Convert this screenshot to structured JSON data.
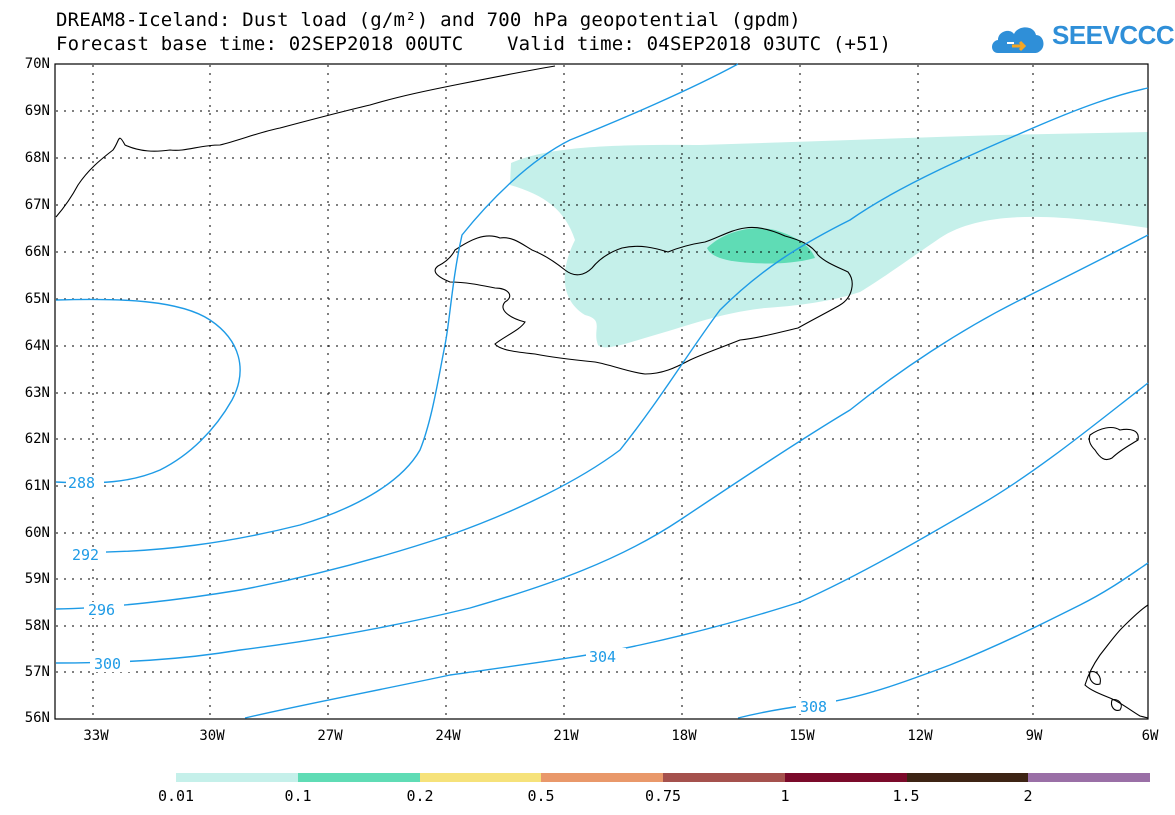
{
  "title_line1": "DREAM8-Iceland: Dust load (g/m²) and 700 hPa geopotential (gpdm)",
  "base_time": "Forecast base time: 02SEP2018 00UTC",
  "valid_time": "Valid time: 04SEP2018 03UTC (+51)",
  "logo": {
    "text": "SEEVCCC",
    "icon": "cloud-icon",
    "color": "#2f8fd8"
  },
  "lat_labels": [
    "70N",
    "69N",
    "68N",
    "67N",
    "66N",
    "65N",
    "64N",
    "63N",
    "62N",
    "61N",
    "60N",
    "59N",
    "58N",
    "57N",
    "56N"
  ],
  "lon_labels": [
    "33W",
    "30W",
    "27W",
    "24W",
    "21W",
    "18W",
    "15W",
    "12W",
    "9W",
    "6W"
  ],
  "contour_labels": [
    "288",
    "292",
    "296",
    "300",
    "304",
    "308"
  ],
  "colorbar": {
    "colors": [
      "#c5f0ea",
      "#5fdcb5",
      "#f6e27a",
      "#e9986a",
      "#a5514d",
      "#7b0a2a",
      "#3d2414",
      "#9a6fa6"
    ],
    "labels": [
      "0.01",
      "0.1",
      "0.2",
      "0.5",
      "0.75",
      "1",
      "1.5",
      "2"
    ]
  },
  "map_colors": {
    "contour": "#1e9be6",
    "dust_low": "#c5f0ea",
    "dust_mid": "#5fdcb5",
    "coast": "#000000"
  }
}
